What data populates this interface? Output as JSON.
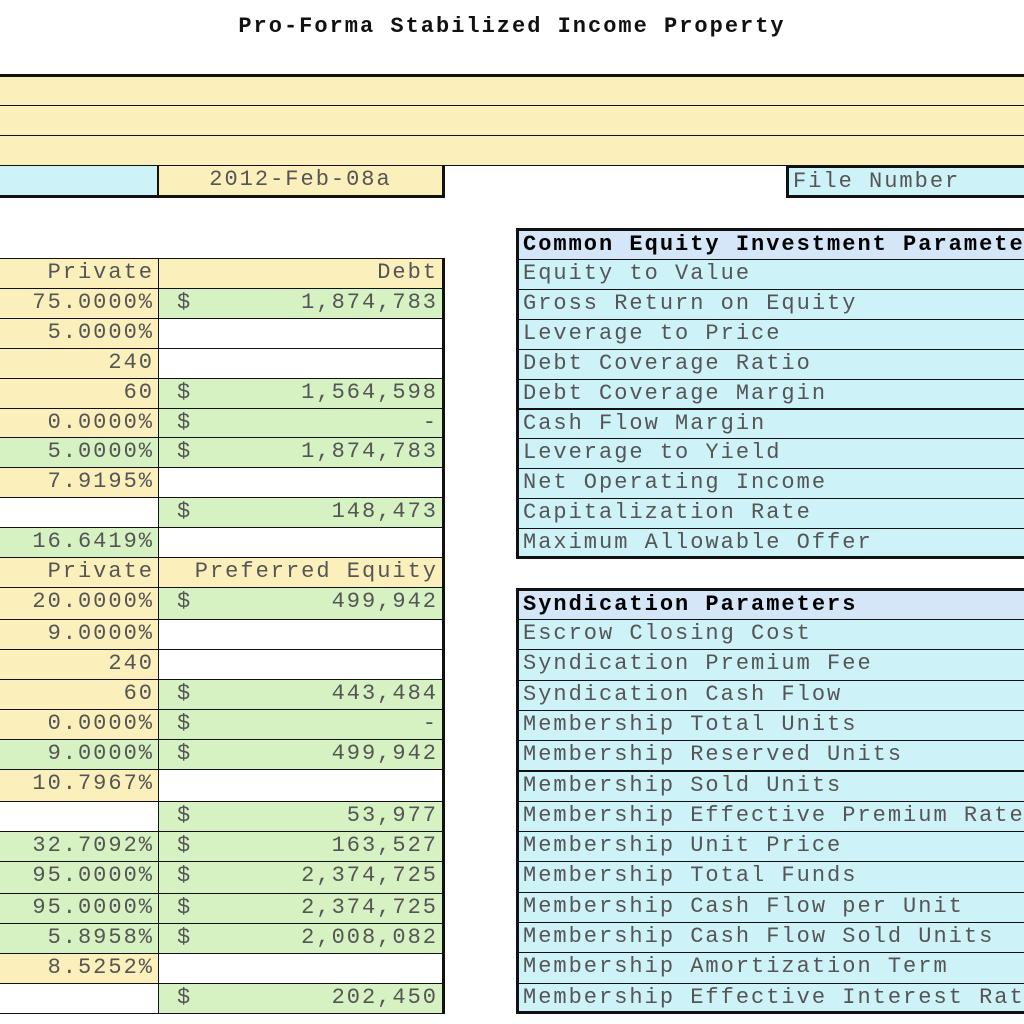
{
  "title": "Pro-Forma Stabilized Income Property",
  "header": {
    "date": "2012-Feb-08a",
    "file_label": "File Number"
  },
  "left_table": {
    "rows": [
      {
        "rate": "Private",
        "amount": "Debt"
      },
      {
        "rate": "75.0000%",
        "currency": "$",
        "amount": "1,874,783"
      },
      {
        "rate": "5.0000%"
      },
      {
        "rate": "240"
      },
      {
        "rate": "60",
        "currency": "$",
        "amount": "1,564,598"
      },
      {
        "rate": "0.0000%",
        "currency": "$",
        "amount": "-"
      },
      {
        "rate": "5.0000%",
        "currency": "$",
        "amount": "1,874,783"
      },
      {
        "rate": "7.9195%"
      },
      {
        "currency": "$",
        "amount": "148,473"
      },
      {
        "rate": "16.6419%"
      },
      {
        "rate": "Private",
        "amount": "Preferred Equity"
      },
      {
        "rate": "20.0000%",
        "currency": "$",
        "amount": "499,942"
      },
      {
        "rate": "9.0000%"
      },
      {
        "rate": "240"
      },
      {
        "rate": "60",
        "currency": "$",
        "amount": "443,484"
      },
      {
        "rate": "0.0000%",
        "currency": "$",
        "amount": "-"
      },
      {
        "rate": "9.0000%",
        "currency": "$",
        "amount": "499,942"
      },
      {
        "rate": "10.7967%"
      },
      {
        "currency": "$",
        "amount": "53,977"
      },
      {
        "rate": "32.7092%",
        "currency": "$",
        "amount": "163,527"
      },
      {
        "rate": "95.0000%",
        "currency": "$",
        "amount": "2,374,725"
      },
      {
        "rate": "95.0000%",
        "currency": "$",
        "amount": "2,374,725"
      },
      {
        "rate": "5.8958%",
        "currency": "$",
        "amount": "2,008,082"
      },
      {
        "rate": "8.5252%"
      },
      {
        "currency": "$",
        "amount": "202,450"
      }
    ]
  },
  "panels": [
    {
      "title": "Common Equity Investment Paramete",
      "items": [
        "Equity to Value",
        "Gross Return on Equity",
        "Leverage to Price",
        "Debt Coverage Ratio",
        "Debt Coverage Margin",
        "Cash Flow Margin",
        "Leverage to Yield",
        "Net Operating Income",
        "Capitalization Rate",
        "Maximum Allowable Offer"
      ]
    },
    {
      "title": "Syndication Parameters",
      "items": [
        "Escrow Closing Cost",
        "Syndication Premium Fee",
        "Syndication Cash Flow",
        "Membership Total Units",
        "Membership Reserved Units",
        "Membership Sold Units",
        "Membership Effective Premium Rate",
        "Membership Unit Price",
        "Membership Total Funds",
        "Membership Cash Flow per Unit",
        "Membership Cash Flow Sold Units",
        "Membership Amortization Term",
        "Membership Effective Interest Rat"
      ]
    }
  ]
}
